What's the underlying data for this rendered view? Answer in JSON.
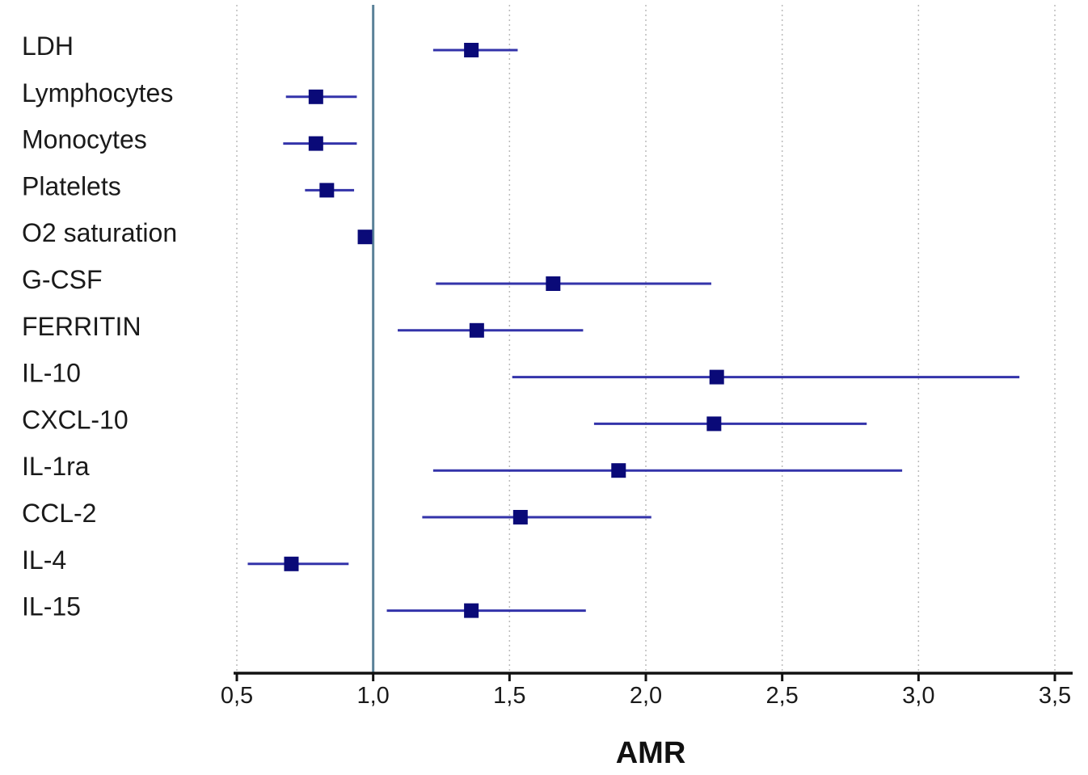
{
  "chart_data": {
    "type": "forest",
    "xlabel": "AMR",
    "xlim": [
      0.5,
      3.5
    ],
    "reference_line": 1.0,
    "grid": "vertical-dotted",
    "ticks": [
      {
        "value": 0.5,
        "label": "0,5"
      },
      {
        "value": 1.0,
        "label": "1,0"
      },
      {
        "value": 1.5,
        "label": "1,5"
      },
      {
        "value": 2.0,
        "label": "2,0"
      },
      {
        "value": 2.5,
        "label": "2,5"
      },
      {
        "value": 3.0,
        "label": "3,0"
      },
      {
        "value": 3.5,
        "label": "3,5"
      }
    ],
    "rows": [
      {
        "label": "LDH",
        "estimate": 1.36,
        "lower": 1.22,
        "upper": 1.53
      },
      {
        "label": "Lymphocytes",
        "estimate": 0.79,
        "lower": 0.68,
        "upper": 0.94
      },
      {
        "label": "Monocytes",
        "estimate": 0.79,
        "lower": 0.67,
        "upper": 0.94
      },
      {
        "label": "Platelets",
        "estimate": 0.83,
        "lower": 0.75,
        "upper": 0.93
      },
      {
        "label": "O2 saturation",
        "estimate": 0.97,
        "lower": 0.96,
        "upper": 0.98
      },
      {
        "label": "G-CSF",
        "estimate": 1.66,
        "lower": 1.23,
        "upper": 2.24
      },
      {
        "label": "FERRITIN",
        "estimate": 1.38,
        "lower": 1.09,
        "upper": 1.77
      },
      {
        "label": "IL-10",
        "estimate": 2.26,
        "lower": 1.51,
        "upper": 3.37
      },
      {
        "label": "CXCL-10",
        "estimate": 2.25,
        "lower": 1.81,
        "upper": 2.81
      },
      {
        "label": "IL-1ra",
        "estimate": 1.9,
        "lower": 1.22,
        "upper": 2.94
      },
      {
        "label": "CCL-2",
        "estimate": 1.54,
        "lower": 1.18,
        "upper": 2.02
      },
      {
        "label": "IL-4",
        "estimate": 0.7,
        "lower": 0.54,
        "upper": 0.91
      },
      {
        "label": "IL-15",
        "estimate": 1.36,
        "lower": 1.05,
        "upper": 1.78
      }
    ],
    "colors": {
      "ci_line": "#3333aa",
      "point": "#0a0a78",
      "reference_line": "#5b8299",
      "axis": "#111111",
      "grid": "#bbbbbb"
    }
  }
}
